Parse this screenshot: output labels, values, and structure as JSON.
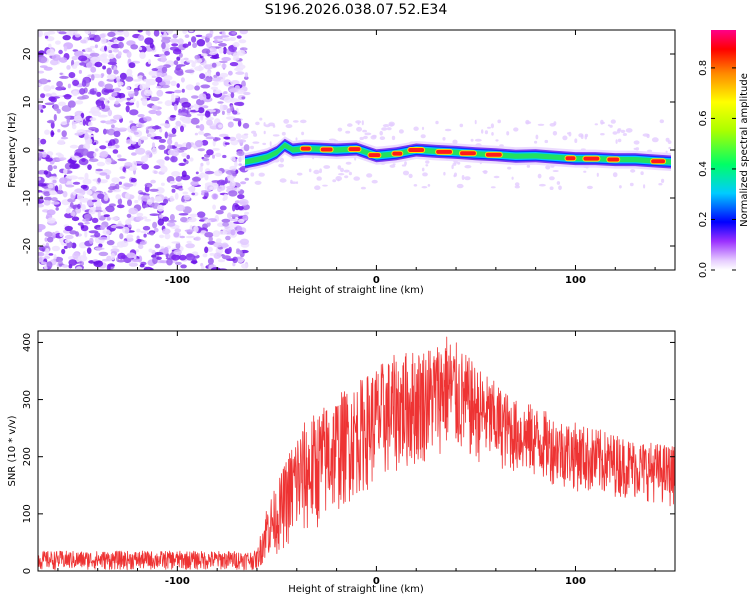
{
  "title": "S196.2026.038.07.52.E34",
  "chart_data": [
    {
      "type": "heatmap",
      "name": "spectrogram",
      "xlabel": "Height of straight line (km)",
      "ylabel": "Frequency (Hz)",
      "xlim": [
        -170,
        150
      ],
      "ylim": [
        -25,
        25
      ],
      "xticks": [
        "-100",
        "0",
        "100"
      ],
      "yticks": [
        "-20",
        "-10",
        "0",
        "10",
        "20"
      ],
      "noise_region_x": [
        -170,
        -65
      ],
      "signal_region_x": [
        -66,
        148
      ],
      "signal_track": {
        "x": [
          -66,
          -60,
          -55,
          -50,
          -46,
          -42,
          -36,
          -30,
          -20,
          -10,
          0,
          10,
          20,
          30,
          40,
          50,
          60,
          70,
          80,
          90,
          100,
          110,
          120,
          130,
          140,
          148
        ],
        "freq": [
          -2.5,
          -2,
          -1.5,
          -0.5,
          1.0,
          0.0,
          0.3,
          0.2,
          0.0,
          0.2,
          -1.2,
          -0.8,
          0.0,
          -0.3,
          -0.5,
          -0.8,
          -1.0,
          -1.3,
          -1.2,
          -1.5,
          -1.8,
          -1.8,
          -2.0,
          -2.0,
          -2.3,
          -2.5
        ],
        "peak_x_ranges": [
          [
            -38,
            -33
          ],
          [
            -28,
            -22
          ],
          [
            -14,
            -8
          ],
          [
            -4,
            2
          ],
          [
            8,
            13
          ],
          [
            16,
            24
          ],
          [
            30,
            38
          ],
          [
            42,
            50
          ],
          [
            55,
            63
          ],
          [
            95,
            100
          ],
          [
            104,
            112
          ],
          [
            116,
            122
          ],
          [
            138,
            145
          ]
        ]
      }
    },
    {
      "type": "colorbar",
      "label": "Normalized spectral amplitude",
      "range": [
        0,
        0.95
      ],
      "ticks": [
        "0.0",
        "0.2",
        "0.4",
        "0.6",
        "0.8"
      ]
    },
    {
      "type": "line",
      "name": "snr",
      "color": "#ee3333",
      "xlabel": "Height of straight line (km)",
      "ylabel": "SNR (10 * v/v)",
      "xlim": [
        -170,
        150
      ],
      "ylim": [
        0,
        420
      ],
      "xticks": [
        "-100",
        "0",
        "100"
      ],
      "yticks": [
        "0",
        "100",
        "200",
        "300",
        "400"
      ],
      "envelope": {
        "x": [
          -170,
          -120,
          -60,
          -55,
          -50,
          -40,
          -30,
          -20,
          -10,
          0,
          10,
          20,
          30,
          35,
          40,
          50,
          60,
          70,
          80,
          90,
          100,
          110,
          120,
          130,
          140,
          150
        ],
        "min": [
          2,
          2,
          2,
          20,
          30,
          50,
          70,
          100,
          130,
          150,
          170,
          180,
          200,
          210,
          200,
          190,
          180,
          170,
          160,
          150,
          140,
          130,
          130,
          125,
          120,
          110
        ],
        "max": [
          35,
          35,
          35,
          120,
          150,
          250,
          280,
          310,
          330,
          360,
          380,
          390,
          400,
          420,
          400,
          360,
          330,
          300,
          290,
          270,
          260,
          250,
          240,
          230,
          225,
          220
        ]
      }
    }
  ]
}
